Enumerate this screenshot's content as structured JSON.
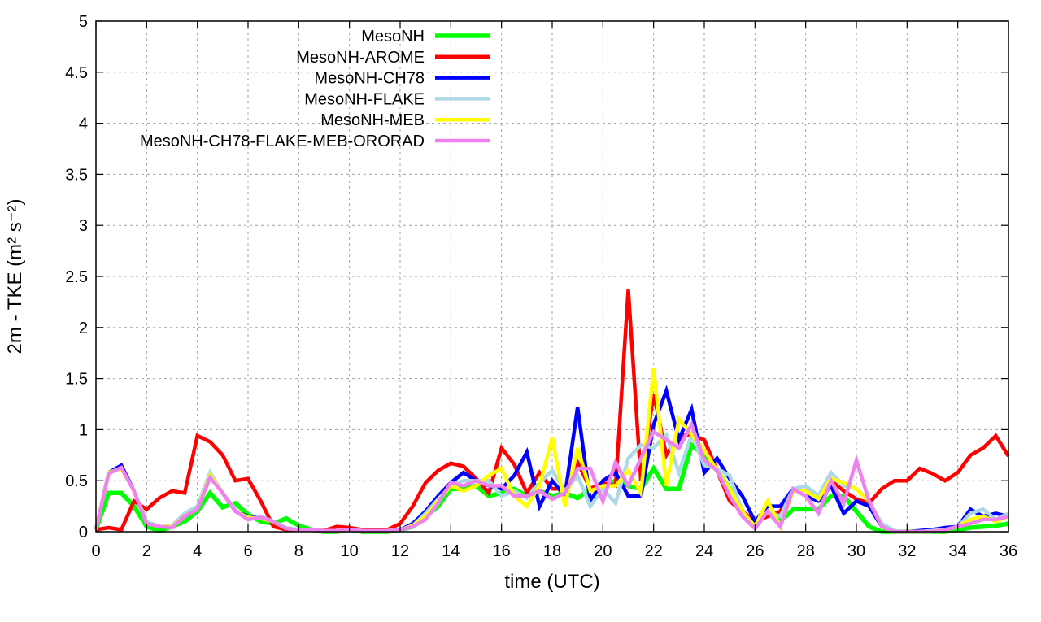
{
  "chart_data": {
    "type": "line",
    "title": "",
    "xlabel": "time (UTC)",
    "ylabel": "2m - TKE (m² s⁻²)",
    "xlim": [
      0,
      36
    ],
    "ylim": [
      0,
      5
    ],
    "xticks": [
      0,
      2,
      4,
      6,
      8,
      10,
      12,
      14,
      16,
      18,
      20,
      22,
      24,
      26,
      28,
      30,
      32,
      34,
      36
    ],
    "yticks": [
      0,
      0.5,
      1,
      1.5,
      2,
      2.5,
      3,
      3.5,
      4,
      4.5,
      5
    ],
    "ytick_labels": [
      "0",
      "0.5",
      "1",
      "1.5",
      "2",
      "2.5",
      "3",
      "3.5",
      "4",
      "4.5",
      "5"
    ],
    "grid": true,
    "legend_position": "top-left",
    "x_step": 0.5,
    "series": [
      {
        "name": "MesoNH",
        "color": "#00ff00",
        "values": [
          0.02,
          0.38,
          0.38,
          0.25,
          0.05,
          0.01,
          0.05,
          0.1,
          0.2,
          0.38,
          0.24,
          0.28,
          0.17,
          0.1,
          0.08,
          0.13,
          0.06,
          0.02,
          0,
          0,
          0.02,
          0,
          0,
          0,
          0.02,
          0.05,
          0.15,
          0.25,
          0.42,
          0.42,
          0.45,
          0.35,
          0.38,
          0.42,
          0.35,
          0.4,
          0.35,
          0.38,
          0.33,
          0.42,
          0.45,
          0.5,
          0.45,
          0.42,
          0.62,
          0.42,
          0.42,
          0.85,
          0.75,
          0.6,
          0.42,
          0.2,
          0.05,
          0.2,
          0.1,
          0.22,
          0.22,
          0.22,
          0.35,
          0.35,
          0.2,
          0.05,
          0,
          0,
          0,
          0,
          0,
          0,
          0.02,
          0.04,
          0.05,
          0.06,
          0.08
        ]
      },
      {
        "name": "MesoNH-AROME",
        "color": "#ff0000",
        "values": [
          0.02,
          0.04,
          0.02,
          0.3,
          0.22,
          0.33,
          0.4,
          0.38,
          0.94,
          0.88,
          0.75,
          0.5,
          0.52,
          0.3,
          0.05,
          0.02,
          0.02,
          0.02,
          0.01,
          0.05,
          0.04,
          0.02,
          0.02,
          0.02,
          0.08,
          0.25,
          0.48,
          0.6,
          0.67,
          0.64,
          0.52,
          0.38,
          0.82,
          0.66,
          0.38,
          0.58,
          0.42,
          0.42,
          0.68,
          0.42,
          0.48,
          0.45,
          2.37,
          0.5,
          1.35,
          0.75,
          0.95,
          0.95,
          0.9,
          0.6,
          0.3,
          0.2,
          0.1,
          0.15,
          0.2,
          0.42,
          0.4,
          0.35,
          0.5,
          0.4,
          0.32,
          0.28,
          0.42,
          0.5,
          0.5,
          0.62,
          0.57,
          0.5,
          0.58,
          0.75,
          0.82,
          0.94,
          0.74
        ]
      },
      {
        "name": "MesoNH-CH78",
        "color": "#0000ff",
        "values": [
          0.02,
          0.58,
          0.65,
          0.4,
          0.08,
          0.05,
          0.05,
          0.15,
          0.22,
          0.55,
          0.38,
          0.2,
          0.15,
          0.15,
          0.1,
          0.03,
          0.02,
          0.02,
          0.01,
          0.01,
          0.02,
          0.01,
          0.01,
          0.01,
          0.02,
          0.08,
          0.2,
          0.35,
          0.48,
          0.58,
          0.5,
          0.45,
          0.42,
          0.55,
          0.78,
          0.25,
          0.5,
          0.35,
          1.22,
          0.3,
          0.5,
          0.58,
          0.35,
          0.35,
          1.05,
          1.38,
          0.9,
          1.2,
          0.58,
          0.72,
          0.52,
          0.35,
          0.1,
          0.25,
          0.25,
          0.42,
          0.35,
          0.3,
          0.45,
          0.18,
          0.3,
          0.25,
          0.05,
          0,
          0,
          0.01,
          0.02,
          0.04,
          0.05,
          0.22,
          0.15,
          0.18,
          0.15
        ]
      },
      {
        "name": "MesoNH-FLAKE",
        "color": "#add8e6",
        "values": [
          0.02,
          0.58,
          0.62,
          0.4,
          0.1,
          0.05,
          0.06,
          0.18,
          0.25,
          0.58,
          0.38,
          0.22,
          0.12,
          0.15,
          0.1,
          0.04,
          0.02,
          0.02,
          0.01,
          0.01,
          0.02,
          0.01,
          0.01,
          0.01,
          0.02,
          0.06,
          0.18,
          0.32,
          0.45,
          0.5,
          0.5,
          0.5,
          0.35,
          0.4,
          0.33,
          0.48,
          0.6,
          0.4,
          0.55,
          0.25,
          0.42,
          0.28,
          0.72,
          0.85,
          0.82,
          0.95,
          0.58,
          0.95,
          0.65,
          0.62,
          0.55,
          0.2,
          0.05,
          0.2,
          0.15,
          0.42,
          0.45,
          0.35,
          0.58,
          0.45,
          0.42,
          0.3,
          0.08,
          0.01,
          0,
          0,
          0.01,
          0.02,
          0.05,
          0.18,
          0.22,
          0.12,
          0.18
        ]
      },
      {
        "name": "MesoNH-MEB",
        "color": "#ffff00",
        "values": [
          0.02,
          0.58,
          0.62,
          0.4,
          0.08,
          0.05,
          0.05,
          0.15,
          0.22,
          0.55,
          0.38,
          0.2,
          0.14,
          0.13,
          0.1,
          0.03,
          0.02,
          0.02,
          0.01,
          0.01,
          0.02,
          0.01,
          0.01,
          0.01,
          0.02,
          0.06,
          0.15,
          0.3,
          0.45,
          0.4,
          0.45,
          0.55,
          0.62,
          0.35,
          0.25,
          0.45,
          0.92,
          0.25,
          0.82,
          0.4,
          0.45,
          0.45,
          0.6,
          0.38,
          1.6,
          0.45,
          1.1,
          0.95,
          0.8,
          0.6,
          0.42,
          0.2,
          0.05,
          0.3,
          0.05,
          0.4,
          0.4,
          0.32,
          0.52,
          0.48,
          0.42,
          0.3,
          0.05,
          0,
          0,
          0,
          0,
          0.02,
          0.05,
          0.12,
          0.15,
          0.1,
          0.15
        ]
      },
      {
        "name": "MesoNH-CH78-FLAKE-MEB-ORORAD",
        "color": "#ee82ee",
        "values": [
          0.02,
          0.57,
          0.63,
          0.4,
          0.08,
          0.05,
          0.04,
          0.15,
          0.22,
          0.53,
          0.38,
          0.2,
          0.12,
          0.14,
          0.1,
          0.03,
          0.02,
          0.02,
          0.01,
          0.01,
          0.02,
          0.01,
          0.01,
          0.01,
          0.02,
          0.05,
          0.12,
          0.28,
          0.48,
          0.45,
          0.5,
          0.45,
          0.45,
          0.35,
          0.35,
          0.4,
          0.32,
          0.38,
          0.62,
          0.62,
          0.3,
          0.68,
          0.45,
          0.72,
          0.98,
          0.9,
          0.82,
          1.05,
          0.7,
          0.6,
          0.35,
          0.15,
          0.03,
          0.2,
          0.05,
          0.42,
          0.35,
          0.18,
          0.5,
          0.28,
          0.7,
          0.3,
          0.05,
          0,
          0,
          0,
          0,
          0.02,
          0.05,
          0.08,
          0.12,
          0.12,
          0.15
        ]
      }
    ]
  }
}
